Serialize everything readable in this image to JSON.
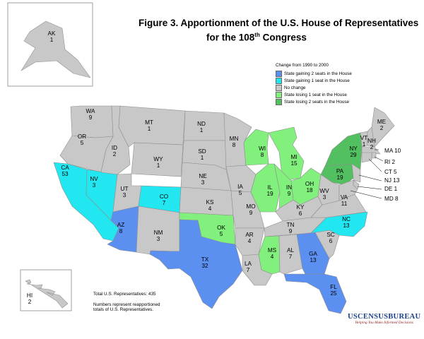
{
  "title": {
    "line1": "Figure 3.  Apportionment of the U.S. House of Representatives",
    "line2_pre": "for the 108",
    "line2_sup": "th",
    "line2_post": " Congress"
  },
  "legend": {
    "title": "Change from 1990 to 2000",
    "items": [
      {
        "label": "State gaining 2 seats in the House",
        "color": "#5b8ff0"
      },
      {
        "label": "State gaining 1 seat in the House",
        "color": "#22e6f0"
      },
      {
        "label": "No change",
        "color": "#c8c8c8"
      },
      {
        "label": "State losing 1 seat in the House",
        "color": "#82f07c"
      },
      {
        "label": "State losing 2 seats in the House",
        "color": "#52bf60"
      }
    ]
  },
  "footnote": {
    "total": "Total U.S. Representatives: 435",
    "note_line1": "Numbers represent reapportioned",
    "note_line2": "totals of U.S. Representatives."
  },
  "brand": {
    "name": "USCENSUSBUREAU",
    "tagline": "Helping You Make Informed Decisions"
  },
  "states": [
    {
      "abbr": "WA",
      "seats": "9",
      "change": 0
    },
    {
      "abbr": "OR",
      "seats": "5",
      "change": 0
    },
    {
      "abbr": "CA",
      "seats": "53",
      "change": 1
    },
    {
      "abbr": "NV",
      "seats": "3",
      "change": 1
    },
    {
      "abbr": "ID",
      "seats": "2",
      "change": 0
    },
    {
      "abbr": "MT",
      "seats": "1",
      "change": 0
    },
    {
      "abbr": "WY",
      "seats": "1",
      "change": 0
    },
    {
      "abbr": "UT",
      "seats": "3",
      "change": 0
    },
    {
      "abbr": "AZ",
      "seats": "8",
      "change": 2
    },
    {
      "abbr": "CO",
      "seats": "7",
      "change": 1
    },
    {
      "abbr": "NM",
      "seats": "3",
      "change": 0
    },
    {
      "abbr": "ND",
      "seats": "1",
      "change": 0
    },
    {
      "abbr": "SD",
      "seats": "1",
      "change": 0
    },
    {
      "abbr": "NE",
      "seats": "3",
      "change": 0
    },
    {
      "abbr": "KS",
      "seats": "4",
      "change": 0
    },
    {
      "abbr": "OK",
      "seats": "5",
      "change": -1
    },
    {
      "abbr": "TX",
      "seats": "32",
      "change": 2
    },
    {
      "abbr": "MN",
      "seats": "8",
      "change": 0
    },
    {
      "abbr": "IA",
      "seats": "5",
      "change": 0
    },
    {
      "abbr": "MO",
      "seats": "9",
      "change": 0
    },
    {
      "abbr": "AR",
      "seats": "4",
      "change": 0
    },
    {
      "abbr": "LA",
      "seats": "7",
      "change": 0
    },
    {
      "abbr": "WI",
      "seats": "8",
      "change": -1
    },
    {
      "abbr": "IL",
      "seats": "19",
      "change": -1
    },
    {
      "abbr": "MI",
      "seats": "15",
      "change": -1
    },
    {
      "abbr": "IN",
      "seats": "9",
      "change": -1
    },
    {
      "abbr": "OH",
      "seats": "18",
      "change": -1
    },
    {
      "abbr": "KY",
      "seats": "6",
      "change": 0
    },
    {
      "abbr": "TN",
      "seats": "9",
      "change": 0
    },
    {
      "abbr": "MS",
      "seats": "4",
      "change": -1
    },
    {
      "abbr": "AL",
      "seats": "7",
      "change": 0
    },
    {
      "abbr": "GA",
      "seats": "13",
      "change": 2
    },
    {
      "abbr": "FL",
      "seats": "25",
      "change": 2
    },
    {
      "abbr": "SC",
      "seats": "6",
      "change": 0
    },
    {
      "abbr": "NC",
      "seats": "13",
      "change": 1
    },
    {
      "abbr": "VA",
      "seats": "11",
      "change": 0
    },
    {
      "abbr": "WV",
      "seats": "3",
      "change": 0
    },
    {
      "abbr": "PA",
      "seats": "19",
      "change": -2
    },
    {
      "abbr": "NY",
      "seats": "29",
      "change": -2
    },
    {
      "abbr": "VT",
      "seats": "1",
      "change": 0
    },
    {
      "abbr": "NH",
      "seats": "2",
      "change": 0
    },
    {
      "abbr": "ME",
      "seats": "2",
      "change": 0
    },
    {
      "abbr": "MA",
      "seats": "10",
      "change": 0
    },
    {
      "abbr": "RI",
      "seats": "2",
      "change": 0
    },
    {
      "abbr": "CT",
      "seats": "5",
      "change": 0
    },
    {
      "abbr": "NJ",
      "seats": "13",
      "change": 0
    },
    {
      "abbr": "DE",
      "seats": "1",
      "change": 0
    },
    {
      "abbr": "MD",
      "seats": "8",
      "change": 0
    },
    {
      "abbr": "AK",
      "seats": "1",
      "change": 0
    },
    {
      "abbr": "HI",
      "seats": "2",
      "change": 0
    }
  ]
}
